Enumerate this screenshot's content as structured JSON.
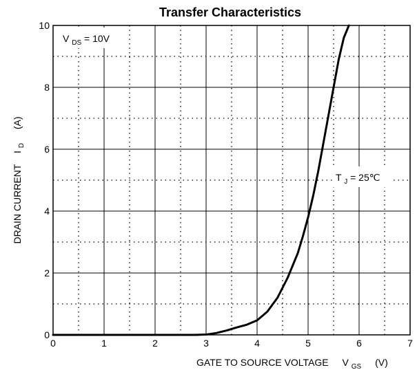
{
  "chart_data": {
    "type": "line",
    "title": "Transfer Characteristics",
    "xlabel": {
      "main": "GATE TO SOURCE VOLTAGE",
      "symbol": "V",
      "subscript": "GS",
      "unit": "(V)"
    },
    "ylabel": {
      "main": "DRAIN CURRENT",
      "symbol": "I",
      "subscript": "D",
      "unit": "(A)"
    },
    "xlim": [
      0,
      7
    ],
    "ylim": [
      0,
      10
    ],
    "x_ticks": [
      0,
      1,
      2,
      3,
      4,
      5,
      6,
      7
    ],
    "y_ticks": [
      0,
      2,
      4,
      6,
      8,
      10
    ],
    "x_tick_labels": [
      "0",
      "1",
      "2",
      "3",
      "4",
      "5",
      "6",
      "7"
    ],
    "y_tick_labels": [
      "0",
      "2",
      "4",
      "6",
      "8",
      "10"
    ],
    "grid": {
      "major": true,
      "minor_dotted": true,
      "minor_x": [
        0.5,
        1.5,
        2.5,
        3.5,
        4.5,
        5.5,
        6.5
      ],
      "minor_y": [
        1,
        3,
        5,
        7,
        9
      ]
    },
    "annotations": [
      {
        "id": "vds",
        "symbol": "V",
        "subscript": "DS",
        "rest": " = 10V",
        "position": "top-left"
      },
      {
        "id": "tj",
        "symbol": "T",
        "subscript": "J",
        "rest": " = 25℃",
        "position": "right"
      }
    ],
    "series": [
      {
        "x": [
          0,
          1,
          2,
          2.8,
          3.0,
          3.2,
          3.4,
          3.6,
          3.8,
          4.0,
          4.2,
          4.4,
          4.6,
          4.8,
          4.9,
          5.0,
          5.1,
          5.2,
          5.3,
          5.4,
          5.5,
          5.6,
          5.7,
          5.8
        ],
        "y": [
          0,
          0,
          0,
          0,
          0.01,
          0.06,
          0.14,
          0.24,
          0.33,
          0.47,
          0.75,
          1.2,
          1.85,
          2.65,
          3.2,
          3.8,
          4.5,
          5.3,
          6.2,
          7.1,
          8.0,
          8.9,
          9.6,
          10.0
        ],
        "color": "#000000"
      }
    ]
  }
}
